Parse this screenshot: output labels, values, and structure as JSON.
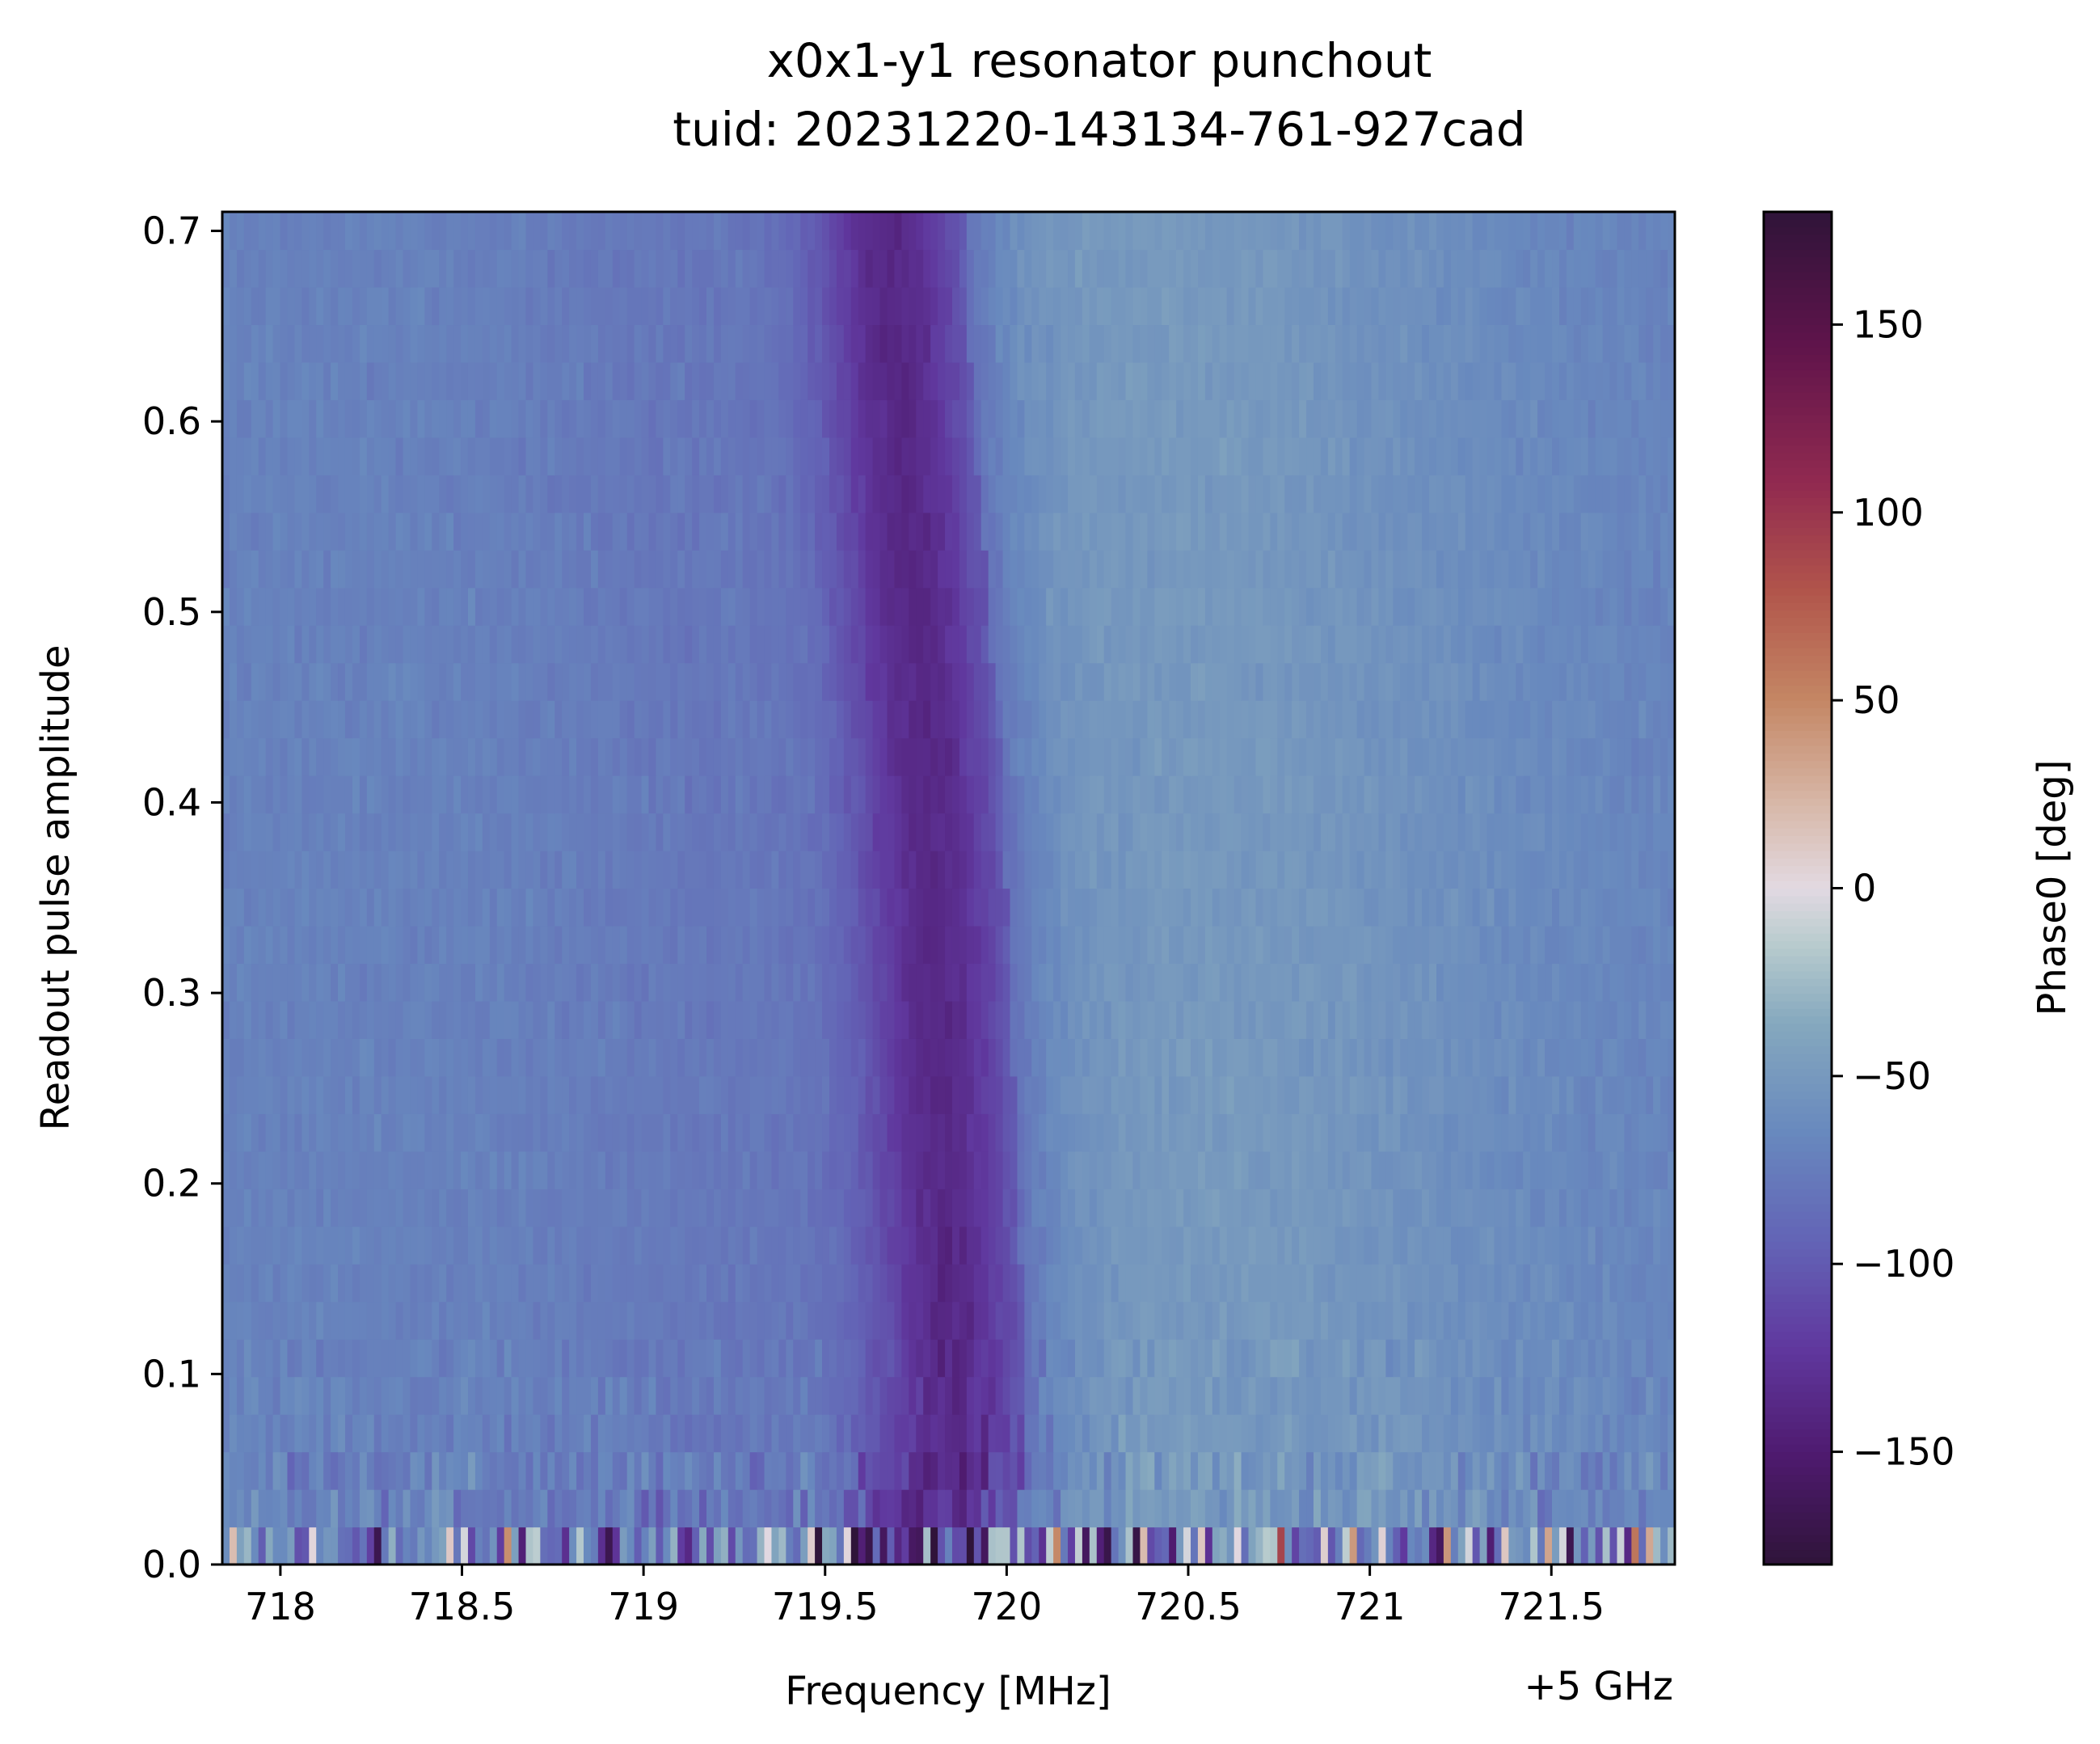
{
  "chart_data": {
    "type": "heatmap",
    "title": "x0x1-y1 resonator punchout",
    "subtitle": "tuid: 20231220-143134-761-927cad",
    "xlabel": "Frequency [MHz]",
    "x_offset_label": "+5 GHz",
    "ylabel": "Readout pulse amplitude",
    "colorbar_label": "Phase0 [deg]",
    "colormap": "twilight_shifted",
    "xlim": [
      717.84,
      721.84
    ],
    "ylim": [
      0.0,
      0.71
    ],
    "clim": [
      -180,
      180
    ],
    "x_ticks": [
      718,
      718.5,
      719,
      719.5,
      720,
      720.5,
      721,
      721.5
    ],
    "x_tick_labels": [
      "718",
      "718.5",
      "719",
      "719.5",
      "720",
      "720.5",
      "721",
      "721.5"
    ],
    "y_ticks": [
      0.0,
      0.1,
      0.2,
      0.3,
      0.4,
      0.5,
      0.6,
      0.7
    ],
    "y_tick_labels": [
      "0.0",
      "0.1",
      "0.2",
      "0.3",
      "0.4",
      "0.5",
      "0.6",
      "0.7"
    ],
    "colorbar_ticks": [
      -150,
      -100,
      -50,
      0,
      50,
      100,
      150
    ],
    "colorbar_tick_labels": [
      "−150",
      "−100",
      "−50",
      "0",
      "50",
      "100",
      "150"
    ],
    "frequency_points": 201,
    "amplitude_points": 36,
    "resonance_center_mhz": [
      719.86,
      719.9,
      719.9,
      719.88,
      719.86,
      719.84,
      719.8,
      719.76,
      719.73
    ],
    "resonance_center_amplitudes": [
      0.02,
      0.06,
      0.1,
      0.2,
      0.3,
      0.4,
      0.5,
      0.6,
      0.7
    ],
    "background_phase_deg": -70,
    "resonance_dip_phase_deg": -135,
    "high_side_phase_deg": -50
  }
}
